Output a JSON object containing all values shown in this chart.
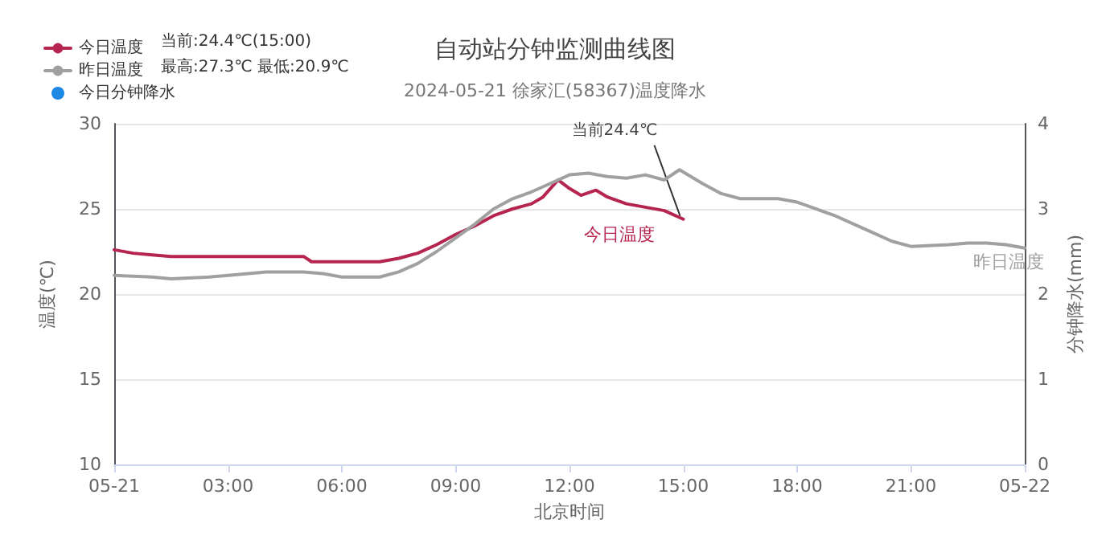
{
  "chart_data": {
    "type": "line",
    "title": "自动站分钟监测曲线图",
    "subtitle": "2024-05-21 徐家汇(58367)温度降水",
    "xlabel": "北京时间",
    "ylabel": "温度(℃)",
    "y2label": "分钟降水(mm)",
    "xlim": [
      0,
      24
    ],
    "xticks": [
      {
        "value": 0,
        "label": "05-21"
      },
      {
        "value": 3,
        "label": "03:00"
      },
      {
        "value": 6,
        "label": "06:00"
      },
      {
        "value": 9,
        "label": "09:00"
      },
      {
        "value": 12,
        "label": "12:00"
      },
      {
        "value": 15,
        "label": "15:00"
      },
      {
        "value": 18,
        "label": "18:00"
      },
      {
        "value": 21,
        "label": "21:00"
      },
      {
        "value": 24,
        "label": "05-22"
      }
    ],
    "ylim": [
      10,
      30
    ],
    "yticks": [
      10,
      15,
      20,
      25,
      30
    ],
    "y2lim": [
      0,
      4
    ],
    "y2ticks": [
      0,
      1,
      2,
      3,
      4
    ],
    "grid": "y",
    "legend": "top left",
    "marker": "none",
    "line_style": "solid",
    "series": [
      {
        "name": "今日温度",
        "color": "#b5254f",
        "x": [
          0,
          0.5,
          1,
          1.5,
          2,
          3,
          4,
          5,
          5.2,
          6,
          7,
          7.5,
          8,
          8.5,
          9,
          9.5,
          10,
          10.5,
          11,
          11.3,
          11.7,
          12,
          12.3,
          12.7,
          13,
          13.5,
          14,
          14.5,
          15
        ],
        "values": [
          22.6,
          22.4,
          22.3,
          22.2,
          22.2,
          22.2,
          22.2,
          22.2,
          21.9,
          21.9,
          21.9,
          22.1,
          22.4,
          22.9,
          23.5,
          24.0,
          24.6,
          25.0,
          25.3,
          25.7,
          26.7,
          26.2,
          25.8,
          26.1,
          25.7,
          25.3,
          25.1,
          24.9,
          24.4
        ]
      },
      {
        "name": "昨日温度",
        "color": "#a0a0a0",
        "x": [
          0,
          1,
          1.5,
          2.5,
          3,
          4,
          5,
          5.5,
          6,
          7,
          7.5,
          8,
          8.5,
          9,
          9.5,
          10,
          10.5,
          11,
          11.5,
          12,
          12.5,
          13,
          13.5,
          14,
          14.5,
          14.9,
          15.5,
          16,
          16.5,
          17,
          17.5,
          18,
          19,
          20,
          20.5,
          21,
          22,
          22.5,
          23,
          23.5,
          24
        ],
        "values": [
          21.1,
          21.0,
          20.9,
          21.0,
          21.1,
          21.3,
          21.3,
          21.2,
          21.0,
          21.0,
          21.3,
          21.8,
          22.5,
          23.3,
          24.1,
          25.0,
          25.6,
          26.0,
          26.5,
          27.0,
          27.1,
          26.9,
          26.8,
          27.0,
          26.7,
          27.3,
          26.5,
          25.9,
          25.6,
          25.6,
          25.6,
          25.4,
          24.6,
          23.6,
          23.1,
          22.8,
          22.9,
          23.0,
          23.0,
          22.9,
          22.7
        ]
      },
      {
        "name": "今日分钟降水",
        "color": "#1e88e5",
        "type": "bar"
      }
    ],
    "annotations": [
      "当前:24.4℃(15:00)",
      "最高:27.3℃ 最低:20.9℃",
      "今日温度",
      "昨日温度",
      {
        "text": "当前24.4℃",
        "x": 15,
        "y": 24.4
      }
    ]
  }
}
